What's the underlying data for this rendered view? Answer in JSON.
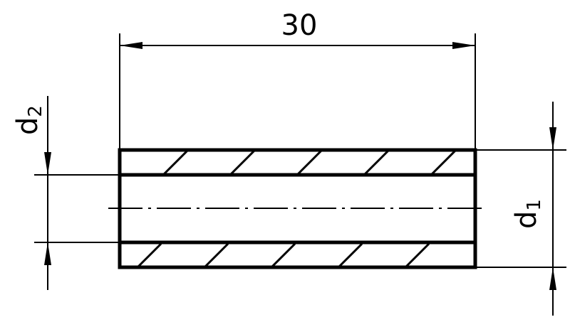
{
  "drawing": {
    "length_dimension": "30",
    "inner_diameter_label": "d",
    "inner_diameter_subscript": "2",
    "outer_diameter_label": "d",
    "outer_diameter_subscript": "1"
  }
}
